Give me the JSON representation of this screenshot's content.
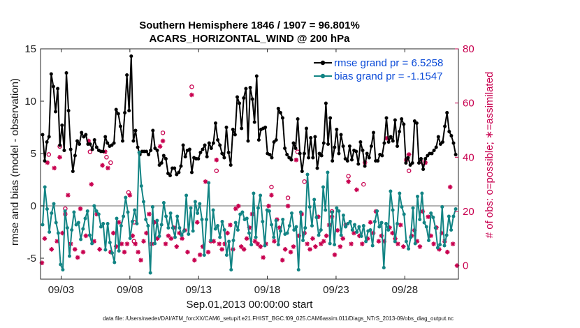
{
  "chart_data": {
    "type": "line",
    "title": "Southern Hemisphere 1846 / 1907 = 96.801%",
    "subtitle": "ACARS_HORIZONTAL_WIND @ 200 hPa",
    "xlabel": "Sep.01,2013 00:00:00 start",
    "ylabel": "rmse and bias (model - observation)",
    "ylabel_right": "# of obs: o=possible; ∗=assimilated",
    "xlim": [
      0.5,
      30.9
    ],
    "ylim": [
      -7,
      15
    ],
    "ylim_right": [
      -5,
      80
    ],
    "x_tick_positions": [
      2,
      7,
      12,
      17,
      22,
      27
    ],
    "x_tick_labels": [
      "09/03",
      "09/08",
      "09/13",
      "09/18",
      "09/23",
      "09/28"
    ],
    "y_ticks": [
      -5,
      0,
      5,
      10,
      15
    ],
    "y_ticks_right": [
      0,
      20,
      40,
      60,
      80
    ],
    "zero_line": 0,
    "legend_position": "top-right",
    "colors": {
      "rmse": "#000000",
      "bias": "#128484",
      "obs": "#c8004f",
      "legend_text": "#0a4ad8",
      "zero": "#b4b4b4"
    },
    "series": [
      {
        "name": "rmse grand pr = 6.5258",
        "values": [
          6.8,
          4.3,
          6.1,
          6.6,
          12.6,
          11.4,
          9.0,
          11.2,
          5.8,
          7.7,
          5.3,
          12.7,
          9.1,
          5.4,
          3.3,
          4.8,
          6.2,
          5.9,
          7.0,
          6.6,
          6.8,
          5.9,
          5.9,
          5.4,
          6.3,
          5.6,
          5.3,
          5.2,
          5.2,
          6.6,
          6.0,
          5.7,
          5.8,
          6.0,
          9.2,
          8.8,
          7.6,
          6.2,
          8.9,
          12.5,
          9.1,
          14.3,
          6.2,
          7.2,
          5.6,
          4.9,
          5.2,
          5.2,
          5.2,
          4.9,
          5.3,
          7.2,
          5.5,
          5.3,
          3.9,
          4.1,
          4.8,
          4.5,
          3.1,
          2.9,
          3.6,
          3.6,
          3.0,
          3.2,
          3.8,
          5.8,
          4.7,
          5.3,
          5.4,
          3.2,
          4.6,
          4.5,
          4.5,
          5.1,
          5.4,
          5.8,
          4.7,
          6.0,
          5.5,
          6.0,
          7.9,
          6.3,
          5.8,
          5.0,
          4.6,
          7.5,
          5.1,
          3.9,
          7.3,
          6.8,
          10.4,
          9.8,
          7.4,
          10.3,
          11.2,
          6.2,
          11.3,
          10.2,
          8.0,
          12.4,
          6.3,
          7.3,
          7.4,
          7.5,
          5.0,
          4.9,
          4.6,
          6.1,
          6.3,
          9.3,
          8.9,
          8.4,
          5.5,
          4.9,
          4.6,
          4.4,
          6.0,
          5.5,
          8.3,
          5.0,
          3.3,
          5.0,
          7.4,
          4.6,
          6.5,
          4.6,
          6.6,
          3.6,
          5.0,
          4.8,
          6.0,
          9.8,
          5.9,
          8.4,
          4.3,
          5.6,
          7.3,
          5.0,
          6.8,
          5.7,
          4.5,
          4.3,
          5.7,
          4.4,
          5.3,
          5.2,
          4.0,
          6.1,
          5.3,
          3.8,
          5.0,
          4.6,
          5.7,
          7.0,
          4.3,
          4.3,
          4.9,
          4.8,
          6.0,
          8.4,
          6.1,
          6.6,
          6.2,
          8.2,
          5.7,
          7.1,
          8.3,
          7.8,
          4.1,
          4.6,
          3.9,
          4.1,
          8.1,
          7.9,
          4.1,
          4.5,
          3.5,
          4.5,
          4.8,
          5.0,
          5.0,
          5.3,
          5.6,
          6.6,
          5.9,
          6.1,
          7.6,
          8.9,
          7.1,
          6.7,
          6.0,
          4.9
        ]
      },
      {
        "name": "bias grand pr = -1.1547",
        "values": [
          -1.8,
          1.8,
          -0.3,
          -2.5,
          -0.7,
          0.2,
          -1.6,
          -2.6,
          -5.6,
          -6.1,
          -0.5,
          -2.1,
          -4.8,
          -2.3,
          -0.6,
          -1.8,
          -1.6,
          -3.2,
          -2.2,
          -1.2,
          -0.5,
          -2.8,
          -3.6,
          0.0,
          -0.5,
          -0.8,
          -2.0,
          -1.7,
          -4.2,
          -1.7,
          -3.5,
          -4.5,
          -5.4,
          -1.2,
          -4.3,
          -1.9,
          -1.0,
          0.8,
          -0.6,
          -3.1,
          -1.5,
          -0.4,
          -1.7,
          5.1,
          1.9,
          0.4,
          -1.3,
          -1.9,
          -6.4,
          -0.1,
          -3.6,
          -1.4,
          -2.9,
          -1.8,
          0.3,
          -1.0,
          -2.1,
          -0.7,
          -2.1,
          -3.0,
          -1.0,
          -2.1,
          -2.8,
          -2.4,
          1.0,
          -2.7,
          -0.2,
          -2.4,
          0.4,
          -0.7,
          0.2,
          -1.3,
          -4.7,
          -1.3,
          2.2,
          -3.3,
          -0.4,
          -2.2,
          -1.9,
          -3.0,
          -1.5,
          -2.3,
          -4.7,
          -3.4,
          -6.1,
          -3.3,
          -1.6,
          -2.3,
          -0.8,
          -0.6,
          -1.3,
          -1.2,
          -2.6,
          -3.7,
          1.2,
          -3.0,
          -0.2,
          1.0,
          -1.5,
          -3.8,
          -0.4,
          -0.5,
          -1.8,
          -3.0,
          -1.4,
          -3.7,
          -2.4,
          -1.3,
          -2.7,
          -2.6,
          -1.9,
          -0.7,
          -2.3,
          -2.0,
          -6.1,
          -0.6,
          -3.3,
          -2.1,
          3.0,
          -0.1,
          -1.9,
          0.6,
          -1.1,
          -2.8,
          -2.3,
          1.8,
          -0.4,
          3.2,
          -3.6,
          -0.6,
          -3.7,
          -0.2,
          -0.5,
          -2.8,
          -0.9,
          -2.0,
          -1.7,
          -1.5,
          -2.3,
          -1.8,
          -2.5,
          -2.0,
          -2.9,
          -1.9,
          -3.4,
          -2.4,
          -2.3,
          -3.8,
          -1.5,
          -0.5,
          -2.0,
          -1.6,
          -5.9,
          -1.7,
          -2.3,
          1.4,
          -0.4,
          -3.4,
          -1.7,
          1.2,
          -0.1,
          -0.8,
          -3.4,
          -4.1,
          -3.0,
          -0.2,
          -3.6,
          0.9,
          -1.3,
          1.2,
          -1.6,
          -2.0,
          -3.3,
          -0.7,
          -1.1,
          -2.1,
          -4.0,
          -3.7,
          -0.1,
          -3.8,
          -2.8,
          -1.0,
          -2.3,
          -1.0,
          -0.3
        ]
      }
    ],
    "obs_possible_o": [
      {
        "x": 1.1,
        "n": 41
      },
      {
        "x": 1.9,
        "n": 44
      },
      {
        "x": 2.3,
        "n": 21
      },
      {
        "x": 4.1,
        "n": 42
      },
      {
        "x": 5.3,
        "n": 40
      },
      {
        "x": 5.6,
        "n": 38
      },
      {
        "x": 6.9,
        "n": 27
      },
      {
        "x": 7.3,
        "n": 16
      },
      {
        "x": 7.3,
        "n": 9
      },
      {
        "x": 9.4,
        "n": 49
      },
      {
        "x": 11.5,
        "n": 66
      },
      {
        "x": 13.3,
        "n": 35
      },
      {
        "x": 17.3,
        "n": 29
      },
      {
        "x": 18.5,
        "n": 25
      },
      {
        "x": 19.2,
        "n": 42
      },
      {
        "x": 19.7,
        "n": 31
      },
      {
        "x": 21.7,
        "n": 20
      },
      {
        "x": 22.9,
        "n": 33
      },
      {
        "x": 24.0,
        "n": 30
      },
      {
        "x": 27.3,
        "n": 35
      },
      {
        "x": 28.3,
        "n": 38
      }
    ],
    "obs_assimilated": [
      {
        "x": 0.6,
        "n": 1
      },
      {
        "x": 0.8,
        "n": 10
      },
      {
        "x": 1.0,
        "n": 38
      },
      {
        "x": 1.3,
        "n": 6
      },
      {
        "x": 1.5,
        "n": 36
      },
      {
        "x": 1.7,
        "n": 9
      },
      {
        "x": 1.9,
        "n": 40
      },
      {
        "x": 2.1,
        "n": 12
      },
      {
        "x": 2.3,
        "n": 19
      },
      {
        "x": 2.5,
        "n": 26
      },
      {
        "x": 2.7,
        "n": 8
      },
      {
        "x": 3.0,
        "n": 6
      },
      {
        "x": 3.2,
        "n": 3
      },
      {
        "x": 3.4,
        "n": 21
      },
      {
        "x": 3.6,
        "n": 5
      },
      {
        "x": 3.8,
        "n": 11
      },
      {
        "x": 4.0,
        "n": 46
      },
      {
        "x": 4.2,
        "n": 30
      },
      {
        "x": 4.4,
        "n": 9
      },
      {
        "x": 4.6,
        "n": 19
      },
      {
        "x": 4.8,
        "n": 6
      },
      {
        "x": 5.0,
        "n": 37
      },
      {
        "x": 5.2,
        "n": 42
      },
      {
        "x": 5.4,
        "n": 36
      },
      {
        "x": 5.6,
        "n": 5
      },
      {
        "x": 5.8,
        "n": 12
      },
      {
        "x": 6.0,
        "n": 7
      },
      {
        "x": 6.2,
        "n": 16
      },
      {
        "x": 6.4,
        "n": 8
      },
      {
        "x": 6.6,
        "n": 5
      },
      {
        "x": 6.8,
        "n": 8
      },
      {
        "x": 7.0,
        "n": 26
      },
      {
        "x": 7.2,
        "n": 11
      },
      {
        "x": 7.4,
        "n": 8
      },
      {
        "x": 7.6,
        "n": 5
      },
      {
        "x": 7.8,
        "n": 2
      },
      {
        "x": 8.0,
        "n": 9
      },
      {
        "x": 8.2,
        "n": 12
      },
      {
        "x": 8.4,
        "n": 19
      },
      {
        "x": 8.6,
        "n": 8
      },
      {
        "x": 8.8,
        "n": 16
      },
      {
        "x": 9.0,
        "n": 10
      },
      {
        "x": 9.2,
        "n": 44
      },
      {
        "x": 9.4,
        "n": 46
      },
      {
        "x": 9.6,
        "n": 8
      },
      {
        "x": 9.8,
        "n": 11
      },
      {
        "x": 10.0,
        "n": 10
      },
      {
        "x": 10.2,
        "n": 14
      },
      {
        "x": 10.4,
        "n": 7
      },
      {
        "x": 10.6,
        "n": 12
      },
      {
        "x": 10.8,
        "n": 10
      },
      {
        "x": 11.0,
        "n": 13
      },
      {
        "x": 11.2,
        "n": 5
      },
      {
        "x": 11.5,
        "n": 63
      },
      {
        "x": 11.7,
        "n": 2
      },
      {
        "x": 11.9,
        "n": 16
      },
      {
        "x": 12.1,
        "n": 4
      },
      {
        "x": 12.3,
        "n": 7
      },
      {
        "x": 12.5,
        "n": 31
      },
      {
        "x": 12.7,
        "n": 5
      },
      {
        "x": 12.9,
        "n": 9
      },
      {
        "x": 13.1,
        "n": 9
      },
      {
        "x": 13.3,
        "n": 39
      },
      {
        "x": 13.5,
        "n": 8
      },
      {
        "x": 13.7,
        "n": 6
      },
      {
        "x": 13.9,
        "n": 8
      },
      {
        "x": 14.1,
        "n": 12
      },
      {
        "x": 14.3,
        "n": 15
      },
      {
        "x": 14.5,
        "n": 6
      },
      {
        "x": 14.7,
        "n": 21
      },
      {
        "x": 14.9,
        "n": 22
      },
      {
        "x": 15.1,
        "n": 7
      },
      {
        "x": 15.3,
        "n": 6
      },
      {
        "x": 15.5,
        "n": 10
      },
      {
        "x": 15.7,
        "n": 14
      },
      {
        "x": 15.9,
        "n": 19
      },
      {
        "x": 16.1,
        "n": 9
      },
      {
        "x": 16.3,
        "n": 8
      },
      {
        "x": 16.5,
        "n": 7
      },
      {
        "x": 16.7,
        "n": 3
      },
      {
        "x": 16.9,
        "n": 8
      },
      {
        "x": 17.1,
        "n": 22
      },
      {
        "x": 17.3,
        "n": 26
      },
      {
        "x": 17.5,
        "n": 9
      },
      {
        "x": 17.7,
        "n": 17
      },
      {
        "x": 17.9,
        "n": 14
      },
      {
        "x": 18.1,
        "n": 2
      },
      {
        "x": 18.3,
        "n": 6
      },
      {
        "x": 18.5,
        "n": 22
      },
      {
        "x": 18.7,
        "n": 5
      },
      {
        "x": 18.9,
        "n": 7
      },
      {
        "x": 19.1,
        "n": 39
      },
      {
        "x": 19.3,
        "n": 11
      },
      {
        "x": 19.5,
        "n": 19
      },
      {
        "x": 19.7,
        "n": 12
      },
      {
        "x": 19.9,
        "n": 8
      },
      {
        "x": 20.1,
        "n": 6
      },
      {
        "x": 20.3,
        "n": 10
      },
      {
        "x": 20.5,
        "n": 7
      },
      {
        "x": 20.7,
        "n": 18
      },
      {
        "x": 20.9,
        "n": 8
      },
      {
        "x": 21.1,
        "n": 9
      },
      {
        "x": 21.3,
        "n": 11
      },
      {
        "x": 21.5,
        "n": 15
      },
      {
        "x": 21.7,
        "n": 18
      },
      {
        "x": 21.9,
        "n": 4
      },
      {
        "x": 22.1,
        "n": 13
      },
      {
        "x": 22.3,
        "n": 7
      },
      {
        "x": 22.5,
        "n": 10
      },
      {
        "x": 22.7,
        "n": 15
      },
      {
        "x": 22.9,
        "n": 31
      },
      {
        "x": 23.1,
        "n": 8
      },
      {
        "x": 23.3,
        "n": 12
      },
      {
        "x": 23.5,
        "n": 28
      },
      {
        "x": 23.7,
        "n": 11
      },
      {
        "x": 23.9,
        "n": 8
      },
      {
        "x": 24.1,
        "n": 38
      },
      {
        "x": 24.3,
        "n": 10
      },
      {
        "x": 24.5,
        "n": 16
      },
      {
        "x": 24.7,
        "n": 12
      },
      {
        "x": 24.9,
        "n": 20
      },
      {
        "x": 25.1,
        "n": 9
      },
      {
        "x": 25.3,
        "n": 11
      },
      {
        "x": 25.5,
        "n": 9
      },
      {
        "x": 25.7,
        "n": 47
      },
      {
        "x": 25.9,
        "n": 14
      },
      {
        "x": 26.1,
        "n": 12
      },
      {
        "x": 26.3,
        "n": 10
      },
      {
        "x": 26.5,
        "n": 8
      },
      {
        "x": 26.7,
        "n": 15
      },
      {
        "x": 26.9,
        "n": 7
      },
      {
        "x": 27.1,
        "n": 39
      },
      {
        "x": 27.3,
        "n": 41
      },
      {
        "x": 27.5,
        "n": 11
      },
      {
        "x": 27.7,
        "n": 13
      },
      {
        "x": 27.9,
        "n": 9
      },
      {
        "x": 28.1,
        "n": 7
      },
      {
        "x": 28.3,
        "n": 20
      },
      {
        "x": 28.5,
        "n": 38
      },
      {
        "x": 28.7,
        "n": 18
      },
      {
        "x": 28.9,
        "n": 11
      },
      {
        "x": 29.1,
        "n": 8
      },
      {
        "x": 29.3,
        "n": 14
      },
      {
        "x": 29.5,
        "n": 6
      },
      {
        "x": 29.7,
        "n": 12
      },
      {
        "x": 29.9,
        "n": 9
      },
      {
        "x": 30.1,
        "n": 5
      },
      {
        "x": 30.3,
        "n": 29
      },
      {
        "x": 30.5,
        "n": 8
      },
      {
        "x": 30.8,
        "n": 0
      }
    ],
    "footer": "data file: /Users/raeder/DAI/ATM_forcXX/CAM6_setup/f.e21.FHIST_BGC.f09_025.CAM6assim.011/Diags_NTrS_2013-09/obs_diag_output.nc"
  }
}
